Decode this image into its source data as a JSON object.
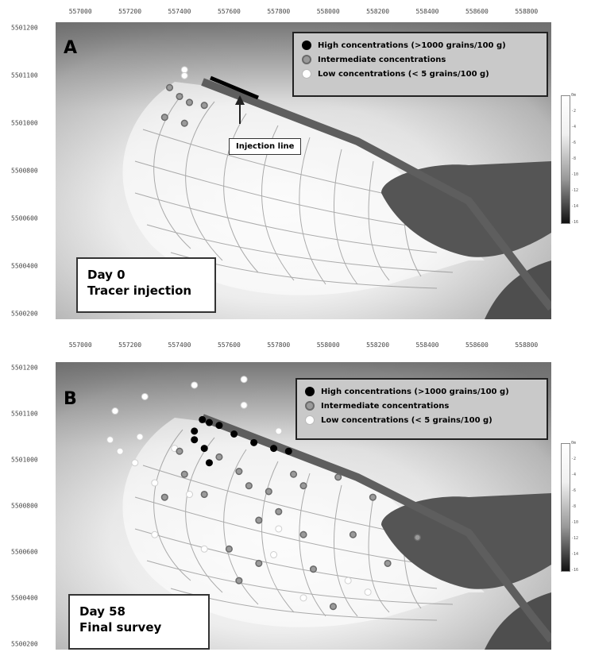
{
  "colors": {
    "sea_light": "#f4f4f4",
    "sea_dark": "#4a4a4a",
    "land": "#6e6e6e",
    "grid_line": "#8a8a8a"
  },
  "panel_a": {
    "letter": "A",
    "x_ticks": [
      "557000",
      "557200",
      "557400",
      "557600",
      "557800",
      "558000",
      "558200",
      "558400",
      "558600",
      "558800"
    ],
    "y_ticks": [
      "5501200",
      "5501100",
      "5501000",
      "5500800",
      "5500600",
      "5500400",
      "5500200"
    ],
    "legend": {
      "high": "High concentrations (>1000 grains/100 g)",
      "mid": "Intermediate concentrations",
      "low": "Low concentrations (< 5 grains/100 g)"
    },
    "callout": "Injection line",
    "day_title": "Day 0",
    "day_subtitle": "Tracer injection"
  },
  "panel_b": {
    "letter": "B",
    "x_ticks": [
      "557000",
      "557200",
      "557400",
      "557600",
      "557800",
      "558000",
      "558200",
      "558400",
      "558600",
      "558800"
    ],
    "y_ticks": [
      "5501200",
      "5501100",
      "5501000",
      "5500800",
      "5500600",
      "5500400",
      "5500200"
    ],
    "legend": {
      "high": "High concentrations (>1000 grains/100 g)",
      "mid": "Intermediate concentrations",
      "low": "Low concentrations (< 5 grains/100 g)"
    },
    "day_title": "Day 58",
    "day_subtitle": "Final survey"
  },
  "depth_scale": [
    "0m",
    "-2",
    "-4",
    "-6",
    "-8",
    "-10",
    "-12",
    "-14",
    "-16"
  ],
  "samples_a": {
    "high": [],
    "mid": [
      [
        0.25,
        0.25
      ],
      [
        0.27,
        0.27
      ],
      [
        0.23,
        0.22
      ],
      [
        0.3,
        0.28
      ],
      [
        0.22,
        0.32
      ],
      [
        0.26,
        0.34
      ]
    ],
    "low": [
      [
        0.26,
        0.16
      ],
      [
        0.26,
        0.18
      ]
    ]
  },
  "samples_b": {
    "high": [
      [
        0.296,
        0.2
      ],
      [
        0.31,
        0.21
      ],
      [
        0.33,
        0.22
      ],
      [
        0.36,
        0.25
      ],
      [
        0.4,
        0.28
      ],
      [
        0.44,
        0.3
      ],
      [
        0.47,
        0.31
      ],
      [
        0.28,
        0.24
      ],
      [
        0.28,
        0.27
      ],
      [
        0.3,
        0.3
      ],
      [
        0.31,
        0.35
      ]
    ],
    "mid": [
      [
        0.25,
        0.31
      ],
      [
        0.33,
        0.33
      ],
      [
        0.37,
        0.38
      ],
      [
        0.39,
        0.43
      ],
      [
        0.43,
        0.45
      ],
      [
        0.48,
        0.39
      ],
      [
        0.5,
        0.43
      ],
      [
        0.41,
        0.55
      ],
      [
        0.45,
        0.52
      ],
      [
        0.5,
        0.6
      ],
      [
        0.35,
        0.65
      ],
      [
        0.41,
        0.7
      ],
      [
        0.37,
        0.76
      ],
      [
        0.52,
        0.72
      ],
      [
        0.56,
        0.85
      ],
      [
        0.73,
        0.61
      ],
      [
        0.6,
        0.6
      ],
      [
        0.3,
        0.46
      ],
      [
        0.26,
        0.39
      ],
      [
        0.22,
        0.47
      ],
      [
        0.57,
        0.4
      ],
      [
        0.64,
        0.47
      ],
      [
        0.67,
        0.7
      ]
    ],
    "low": [
      [
        0.11,
        0.27
      ],
      [
        0.13,
        0.31
      ],
      [
        0.16,
        0.35
      ],
      [
        0.2,
        0.42
      ],
      [
        0.12,
        0.17
      ],
      [
        0.18,
        0.12
      ],
      [
        0.28,
        0.08
      ],
      [
        0.38,
        0.06
      ],
      [
        0.24,
        0.3
      ],
      [
        0.27,
        0.46
      ],
      [
        0.2,
        0.6
      ],
      [
        0.3,
        0.65
      ],
      [
        0.45,
        0.58
      ],
      [
        0.44,
        0.67
      ],
      [
        0.5,
        0.82
      ],
      [
        0.59,
        0.76
      ],
      [
        0.45,
        0.24
      ],
      [
        0.38,
        0.15
      ],
      [
        0.63,
        0.8
      ],
      [
        0.17,
        0.26
      ]
    ]
  }
}
